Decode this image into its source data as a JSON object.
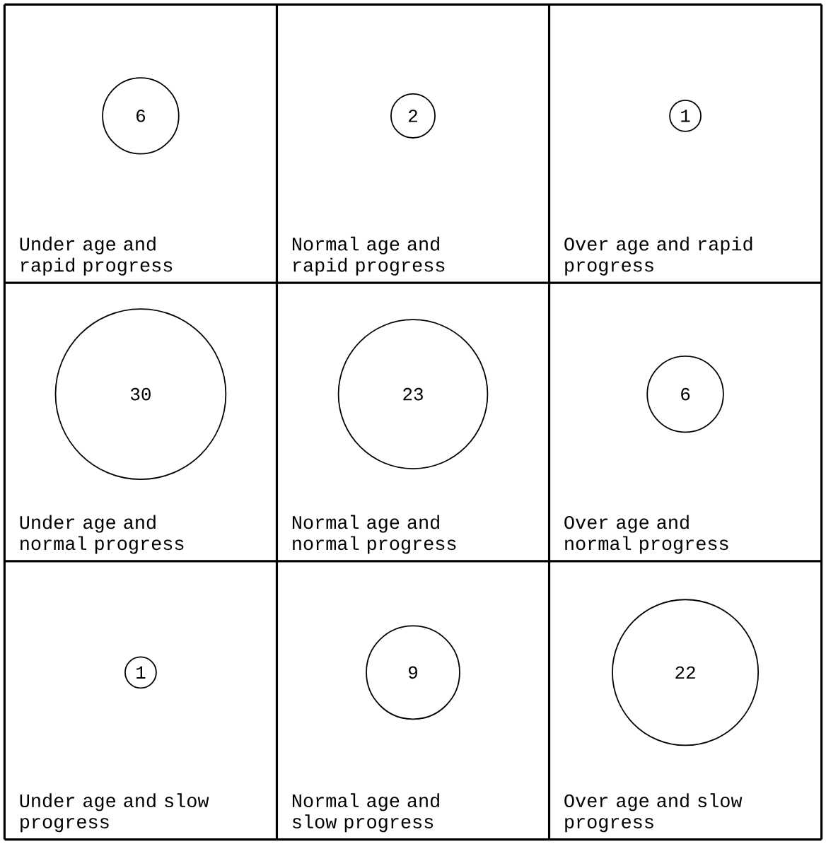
{
  "chart_data": {
    "type": "other",
    "categories": [
      "Under age and rapid progress",
      "Normal age and rapid progress",
      "Over age and rapid progress",
      "Under age and normal progress",
      "Normal age and normal progress",
      "Over age and normal progress",
      "Under age and slow progress",
      "Normal age and slow progress",
      "Over age and slow progress"
    ],
    "values": [
      6,
      2,
      1,
      30,
      23,
      6,
      1,
      9,
      22
    ],
    "data_labels": true
  }
}
